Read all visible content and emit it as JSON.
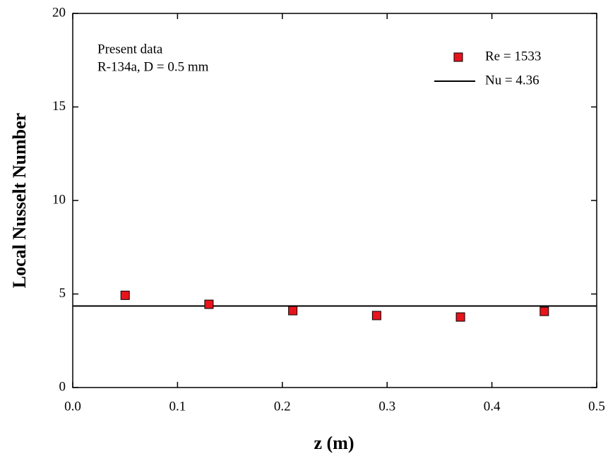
{
  "chart_data": {
    "type": "scatter",
    "xlabel": "z (m)",
    "ylabel": "Local Nusselt Number",
    "annotations": [
      "Present data",
      "R-134a, D = 0.5 mm"
    ],
    "xlim": [
      0,
      0.5
    ],
    "ylim": [
      0,
      20
    ],
    "xticks": [
      {
        "value": 0,
        "label": "0.0"
      },
      0.1,
      0.2,
      0.3,
      0.4,
      0.5
    ],
    "yticks": [
      0,
      5,
      10,
      15,
      20
    ],
    "legend": "upper right",
    "series": [
      {
        "name": "Re = 1533",
        "color": "#e8141c",
        "x": [
          0.05,
          0.13,
          0.21,
          0.29,
          0.37,
          0.45
        ],
        "values": [
          4.93,
          4.45,
          4.11,
          3.85,
          3.77,
          4.07
        ]
      }
    ],
    "hlines": [
      {
        "name": "Nu = 4.36",
        "color": "#000000",
        "y": 4.36
      }
    ]
  }
}
